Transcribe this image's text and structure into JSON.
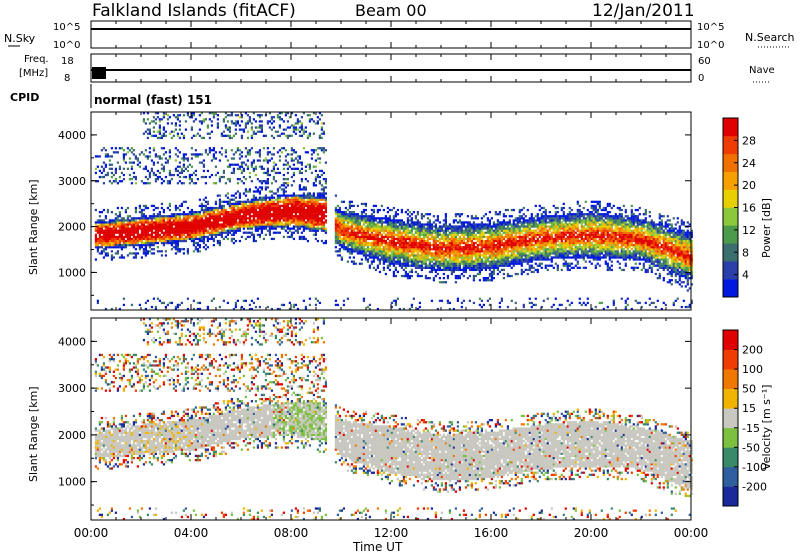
{
  "header": {
    "station": "Falkland Islands (fitACF)",
    "beam": "Beam 00",
    "date": "12/Jan/2011"
  },
  "strips": {
    "nsky_label": "N.Sky",
    "nsearch_label": "N.Search",
    "freq_label_1": "Freq.",
    "freq_label_2": "[MHz]",
    "nave_label": "Nave",
    "cpid_label": "CPID",
    "cpid_value": "normal (fast) 151",
    "nsky_ticks": [
      "10^5",
      "10^0"
    ],
    "nsearch_ticks": [
      "10^5",
      "10^0"
    ],
    "freq_ticks": [
      "18",
      "8"
    ],
    "nave_ticks": [
      "60",
      "0"
    ]
  },
  "x_axis": {
    "label": "Time UT",
    "ticks": [
      "00:00",
      "04:00",
      "08:00",
      "12:00",
      "16:00",
      "20:00",
      "00:00"
    ]
  },
  "power_panel": {
    "ylabel": "Slant Range [km]",
    "yticks": [
      "4000",
      "3000",
      "2000",
      "1000"
    ],
    "colorbar_label": "Power [dB]",
    "colorbar_ticks": [
      "28",
      "24",
      "20",
      "16",
      "12",
      "8",
      "4"
    ],
    "colors": [
      "#0018e0",
      "#2a3fa8",
      "#3c6e70",
      "#4c9a4c",
      "#8cc83c",
      "#e8d000",
      "#f5a000",
      "#f07000",
      "#f03c00",
      "#e00000"
    ]
  },
  "velocity_panel": {
    "ylabel": "Slant Range [km]",
    "yticks": [
      "4000",
      "3000",
      "2000",
      "1000"
    ],
    "colorbar_label": "Velocity [m s⁻¹]",
    "colorbar_ticks": [
      "200",
      "100",
      "50",
      "15",
      "-15",
      "-50",
      "-100",
      "-200"
    ],
    "colors": [
      "#1a2a9a",
      "#2f5f9f",
      "#3a8a6a",
      "#7cc040",
      "#c8c8c0",
      "#f0b400",
      "#f07800",
      "#f03c00",
      "#e00000"
    ]
  },
  "chart_data": {
    "type": "heatmap",
    "x_unit": "hours UT",
    "x_range": [
      0,
      24
    ],
    "y_unit": "km",
    "y_range": [
      180,
      4500
    ],
    "data_gap_hours": [
      9.4,
      9.7
    ],
    "main_echo_band": [
      {
        "t": 0.5,
        "lo": 1500,
        "hi": 2100
      },
      {
        "t": 2,
        "lo": 1550,
        "hi": 2200
      },
      {
        "t": 4,
        "lo": 1650,
        "hi": 2300
      },
      {
        "t": 6,
        "lo": 1900,
        "hi": 2550
      },
      {
        "t": 8,
        "lo": 1950,
        "hi": 2700
      },
      {
        "t": 9.3,
        "lo": 1850,
        "hi": 2650
      },
      {
        "t": 10,
        "lo": 1500,
        "hi": 2300
      },
      {
        "t": 12,
        "lo": 1150,
        "hi": 2150
      },
      {
        "t": 14,
        "lo": 1000,
        "hi": 2000
      },
      {
        "t": 16,
        "lo": 1050,
        "hi": 2050
      },
      {
        "t": 18,
        "lo": 1250,
        "hi": 2200
      },
      {
        "t": 20,
        "lo": 1300,
        "hi": 2300
      },
      {
        "t": 22,
        "lo": 1250,
        "hi": 2150
      },
      {
        "t": 23.9,
        "lo": 800,
        "hi": 1850
      }
    ],
    "power_range_db": [
      0,
      30
    ],
    "velocity_range_ms": [
      -200,
      200
    ],
    "series": [
      {
        "name": "Power [dB]"
      },
      {
        "name": "Velocity [m s⁻¹]"
      }
    ]
  }
}
